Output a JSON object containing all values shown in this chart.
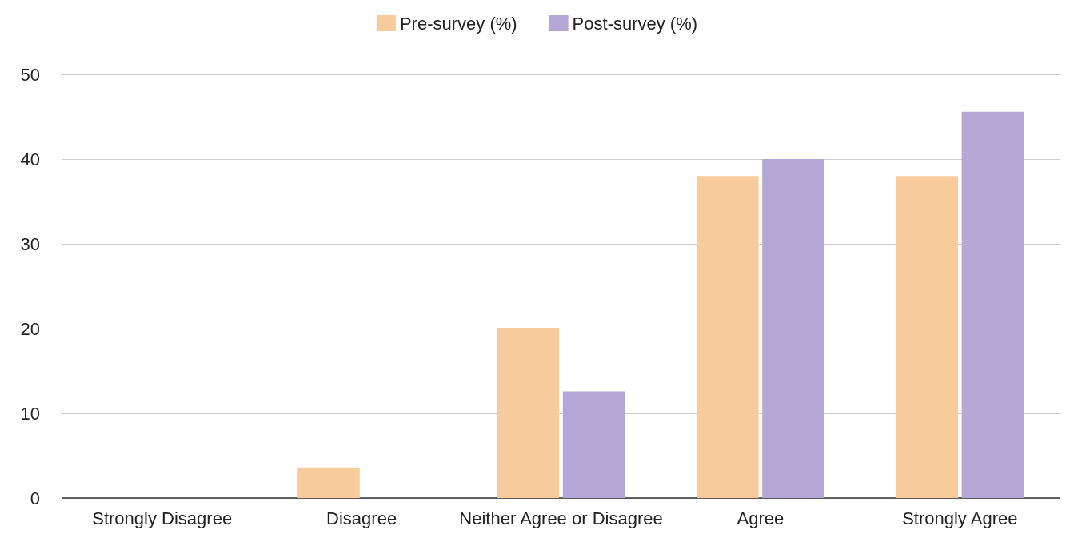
{
  "chart_data": {
    "type": "bar",
    "categories": [
      "Strongly Disagree",
      "Disagree",
      "Neither Agree or Disagree",
      "Agree",
      "Strongly Agree"
    ],
    "series": [
      {
        "name": "Pre-survey (%)",
        "color": "#f8cb9c",
        "values": [
          0,
          3.6,
          20.1,
          38,
          38
        ]
      },
      {
        "name": "Post-survey (%)",
        "color": "#b4a7d6",
        "values": [
          0,
          0,
          12.6,
          40,
          45.6
        ]
      }
    ],
    "ylim": [
      0,
      50
    ],
    "yticks": [
      0,
      10,
      20,
      30,
      40,
      50
    ],
    "grid": "y",
    "legend": "top"
  }
}
